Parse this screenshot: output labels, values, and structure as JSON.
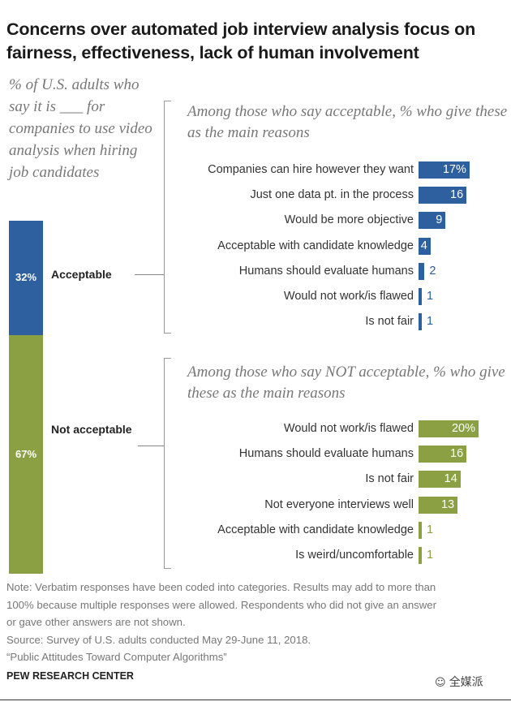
{
  "title": "Concerns over automated job interview analysis focus on fairness, effectiveness, lack of human involvement",
  "lead_text": "% of U.S. adults who say it is ___ for companies to use video analysis when hiring job candidates",
  "colors": {
    "acceptable": "#2e5f9e",
    "not_acceptable": "#8ba043"
  },
  "chart_data": {
    "type": "bar",
    "stacked_share": [
      {
        "name": "Acceptable",
        "value": 32,
        "label": "32%"
      },
      {
        "name": "Not acceptable",
        "value": 67,
        "label": "67%"
      }
    ],
    "panels": [
      {
        "heading": "Among those who say acceptable, % who give these as the main reasons",
        "categories": [
          "Companies can hire however they want",
          "Just one data pt. in the process",
          "Would be more objective",
          "Acceptable with candidate knowledge",
          "Humans should evaluate humans",
          "Would not work/is flawed",
          "Is not fair"
        ],
        "values": [
          17,
          16,
          9,
          4,
          2,
          1,
          1
        ],
        "labels": [
          "17%",
          "16",
          "9",
          "4",
          "2",
          "1",
          "1"
        ]
      },
      {
        "heading": "Among those who say NOT acceptable, % who give these as the main reasons",
        "categories": [
          "Would not work/is flawed",
          "Humans should evaluate humans",
          "Is not fair",
          "Not everyone interviews well",
          "Acceptable with candidate knowledge",
          "Is weird/uncomfortable"
        ],
        "values": [
          20,
          16,
          14,
          13,
          1,
          1
        ],
        "labels": [
          "20%",
          "16",
          "14",
          "13",
          "1",
          "1"
        ]
      }
    ]
  },
  "note_lines": [
    "Note: Verbatim responses have been coded into categories. Results may add to more than",
    "100% because multiple responses were allowed. Respondents who did not give an answer",
    "or gave other answers are not shown.",
    "Source: Survey of U.S. adults conducted May 29-June 11, 2018.",
    "“Public Attitudes Toward Computer Algorithms”"
  ],
  "footer": "PEW RESEARCH CENTER",
  "watermark": "全媒派"
}
